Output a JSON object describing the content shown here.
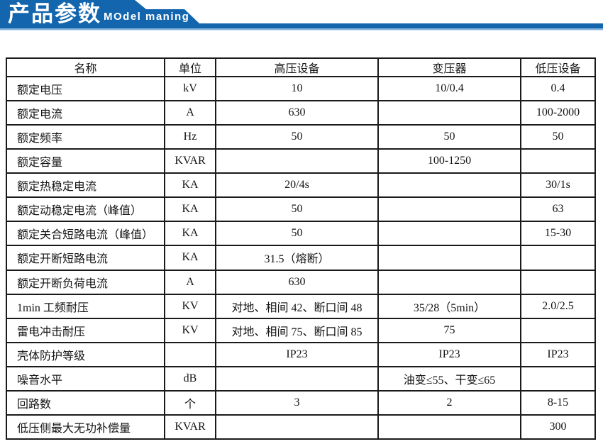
{
  "banner": {
    "title": "产品参数",
    "subtitle": "MOdel maning",
    "bg_color": "#1366ae",
    "underline_color": "#8ab3dc"
  },
  "table": {
    "headers": [
      "名称",
      "单位",
      "高压设备",
      "变压器",
      "低压设备"
    ],
    "rows": [
      [
        "额定电压",
        "kV",
        "10",
        "10/0.4",
        "0.4"
      ],
      [
        "额定电流",
        "A",
        "630",
        "",
        "100-2000"
      ],
      [
        "额定频率",
        "Hz",
        "50",
        "50",
        "50"
      ],
      [
        "额定容量",
        "KVAR",
        "",
        "100-1250",
        ""
      ],
      [
        "额定热稳定电流",
        "KA",
        "20/4s",
        "",
        "30/1s"
      ],
      [
        "额定动稳定电流（峰值）",
        "KA",
        "50",
        "",
        "63"
      ],
      [
        "额定关合短路电流（峰值）",
        "KA",
        "50",
        "",
        "15-30"
      ],
      [
        "额定开断短路电流",
        "KA",
        "31.5（熔断）",
        "",
        ""
      ],
      [
        "额定开断负荷电流",
        "A",
        "630",
        "",
        ""
      ],
      [
        "1min 工频耐压",
        "KV",
        "对地、相间 42、断口间 48",
        "35/28（5min）",
        "2.0/2.5"
      ],
      [
        "雷电冲击耐压",
        "KV",
        "对地、相间 75、断口间 85",
        "75",
        ""
      ],
      [
        "壳体防护等级",
        "",
        "IP23",
        "IP23",
        "IP23"
      ],
      [
        "噪音水平",
        "dB",
        "",
        "油变≤55、干变≤65",
        ""
      ],
      [
        "回路数",
        "个",
        "3",
        "2",
        "8-15"
      ],
      [
        "低压侧最大无功补偿量",
        "KVAR",
        "",
        "",
        "300"
      ]
    ]
  }
}
